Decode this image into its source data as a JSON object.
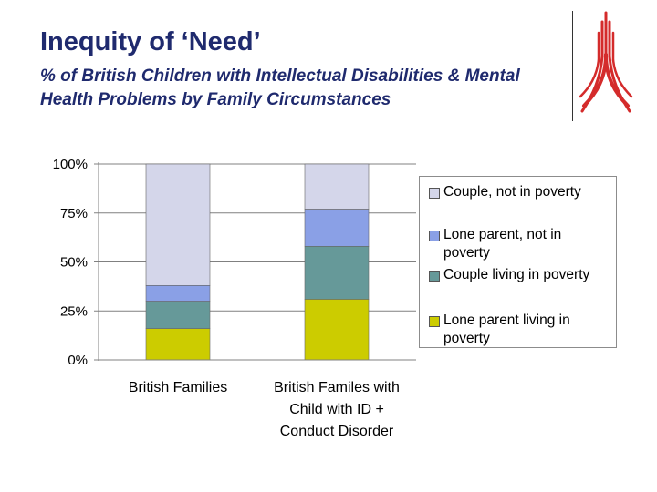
{
  "header": {
    "title": "Inequity of ‘Need’",
    "subtitle": "% of British Children with Intellectual Disabilities & Mental Health Problems by Family Circumstances"
  },
  "logo": {
    "icon": "red-tree-logo-icon",
    "color": "#d42b2b"
  },
  "chart_data": {
    "type": "bar",
    "stacked": true,
    "percent": true,
    "categories": [
      [
        "British Families"
      ],
      [
        "British Familes with",
        "Child with ID +",
        "Conduct Disorder"
      ]
    ],
    "series": [
      {
        "name": "Lone parent living in poverty",
        "values": [
          16,
          31
        ],
        "color": "#cccc00"
      },
      {
        "name": "Couple living in poverty",
        "values": [
          14,
          27
        ],
        "color": "#669999"
      },
      {
        "name": "Lone parent, not in poverty",
        "values": [
          8,
          19
        ],
        "color": "#8aa0e6"
      },
      {
        "name": "Couple, not in poverty",
        "values": [
          62,
          23
        ],
        "color": "#d4d6ea"
      }
    ],
    "ylim": [
      0,
      100
    ],
    "yticks": [
      "0%",
      "25%",
      "50%",
      "75%",
      "100%"
    ],
    "ytick_values": [
      0,
      25,
      50,
      75,
      100
    ],
    "grid": true,
    "legend": {
      "position": "right",
      "entries": [
        [
          "Couple, not in poverty"
        ],
        [
          "Lone parent, not in",
          "poverty"
        ],
        [
          "Couple living in poverty"
        ],
        [
          "Lone parent living in",
          "poverty"
        ]
      ]
    },
    "title": "",
    "xlabel": "",
    "ylabel": ""
  }
}
